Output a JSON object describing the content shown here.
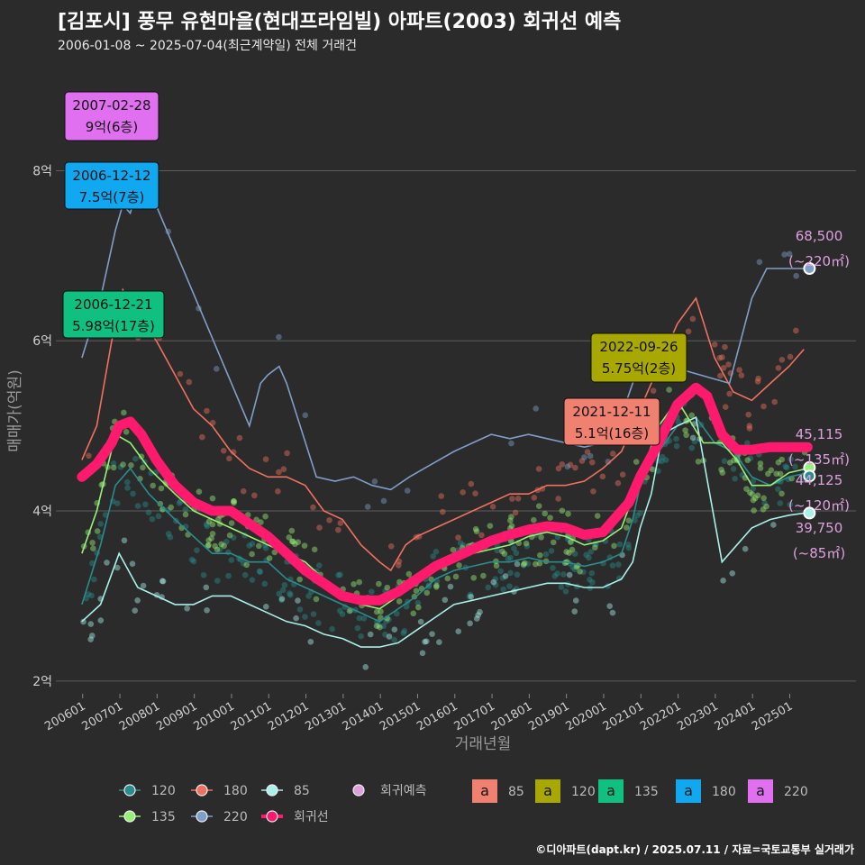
{
  "title": "[김포시] 풍무 유현마을(현대프라임빌) 아파트(2003) 회귀선 예측",
  "subtitle": "2006-01-08 ~ 2025-07-04(최근계약일) 전체 거래건",
  "credit": "©디아파트(dapt.kr) / 2025.07.11 / 자료=국토교통부 실거래가",
  "colors": {
    "s120": "#2a8c8c",
    "s180": "#f07060",
    "s85": "#a8f0e8",
    "s135": "#98f078",
    "s220": "#7f9fc8",
    "trend": "#ff1a6e",
    "forecast": "#dda0dd",
    "box85": "#f08070",
    "box120": "#a8a800",
    "box135": "#10c080",
    "box180": "#10a8f0",
    "box220": "#e070f0"
  },
  "chart_data": {
    "type": "line",
    "xlabel": "거래년월",
    "ylabel": "매매가(억원)",
    "x_ticks": [
      "200601",
      "200701",
      "200801",
      "200901",
      "201001",
      "201101",
      "201201",
      "201301",
      "201401",
      "201501",
      "201601",
      "201701",
      "201801",
      "201901",
      "202001",
      "202101",
      "202201",
      "202301",
      "202401",
      "202501"
    ],
    "y_ticks": [
      {
        "v": 2,
        "label": "2억"
      },
      {
        "v": 4,
        "label": "4억"
      },
      {
        "v": 6,
        "label": "6억"
      },
      {
        "v": 8,
        "label": "8억"
      }
    ],
    "ylim": [
      2,
      9.2
    ],
    "series": [
      {
        "name": "120",
        "key": "s120",
        "points": [
          [
            2006.0,
            2.9
          ],
          [
            2006.5,
            3.6
          ],
          [
            2006.9,
            4.3
          ],
          [
            2007.3,
            4.5
          ],
          [
            2007.8,
            4.2
          ],
          [
            2008.5,
            3.9
          ],
          [
            2009.0,
            3.7
          ],
          [
            2009.5,
            3.5
          ],
          [
            2010.0,
            3.5
          ],
          [
            2010.5,
            3.4
          ],
          [
            2011.0,
            3.4
          ],
          [
            2011.5,
            3.2
          ],
          [
            2012.0,
            3.1
          ],
          [
            2012.5,
            3.0
          ],
          [
            2013.0,
            2.9
          ],
          [
            2013.5,
            2.8
          ],
          [
            2014.0,
            2.7
          ],
          [
            2014.5,
            2.85
          ],
          [
            2015.0,
            3.0
          ],
          [
            2015.5,
            3.2
          ],
          [
            2016.0,
            3.3
          ],
          [
            2016.5,
            3.35
          ],
          [
            2017.0,
            3.4
          ],
          [
            2017.5,
            3.4
          ],
          [
            2018.0,
            3.45
          ],
          [
            2018.5,
            3.4
          ],
          [
            2019.0,
            3.4
          ],
          [
            2019.5,
            3.35
          ],
          [
            2020.0,
            3.4
          ],
          [
            2020.5,
            3.5
          ],
          [
            2020.8,
            3.9
          ],
          [
            2021.0,
            4.3
          ],
          [
            2021.5,
            4.7
          ],
          [
            2022.0,
            5.0
          ],
          [
            2022.5,
            5.1
          ],
          [
            2023.0,
            4.8
          ],
          [
            2023.5,
            4.7
          ],
          [
            2024.0,
            4.4
          ],
          [
            2024.5,
            4.3
          ],
          [
            2025.0,
            4.4
          ],
          [
            2025.5,
            4.45
          ]
        ]
      },
      {
        "name": "180",
        "key": "s180",
        "points": [
          [
            2006.0,
            4.6
          ],
          [
            2006.4,
            5.0
          ],
          [
            2006.8,
            6.0
          ],
          [
            2007.1,
            6.6
          ],
          [
            2007.5,
            6.3
          ],
          [
            2008.0,
            6.0
          ],
          [
            2008.5,
            5.6
          ],
          [
            2009.0,
            5.2
          ],
          [
            2009.5,
            5.0
          ],
          [
            2010.0,
            4.7
          ],
          [
            2010.5,
            4.5
          ],
          [
            2011.0,
            4.4
          ],
          [
            2011.5,
            4.4
          ],
          [
            2012.0,
            4.3
          ],
          [
            2012.5,
            4.0
          ],
          [
            2013.0,
            3.9
          ],
          [
            2013.5,
            3.6
          ],
          [
            2014.0,
            3.4
          ],
          [
            2014.3,
            3.3
          ],
          [
            2014.7,
            3.6
          ],
          [
            2015.0,
            3.7
          ],
          [
            2015.5,
            3.8
          ],
          [
            2016.0,
            3.9
          ],
          [
            2016.5,
            4.0
          ],
          [
            2017.0,
            4.1
          ],
          [
            2017.5,
            4.2
          ],
          [
            2018.0,
            4.2
          ],
          [
            2018.5,
            4.3
          ],
          [
            2019.0,
            4.3
          ],
          [
            2019.5,
            4.35
          ],
          [
            2020.0,
            4.5
          ],
          [
            2020.5,
            4.7
          ],
          [
            2021.0,
            5.2
          ],
          [
            2021.5,
            5.7
          ],
          [
            2022.0,
            6.2
          ],
          [
            2022.5,
            6.5
          ],
          [
            2023.0,
            5.8
          ],
          [
            2023.5,
            5.4
          ],
          [
            2024.0,
            5.3
          ],
          [
            2024.5,
            5.5
          ],
          [
            2025.0,
            5.7
          ],
          [
            2025.4,
            5.9
          ]
        ]
      },
      {
        "name": "85",
        "key": "s85",
        "points": [
          [
            2006.0,
            2.7
          ],
          [
            2006.5,
            2.9
          ],
          [
            2007.0,
            3.5
          ],
          [
            2007.5,
            3.1
          ],
          [
            2008.0,
            3.0
          ],
          [
            2008.5,
            2.9
          ],
          [
            2009.0,
            2.9
          ],
          [
            2009.5,
            3.0
          ],
          [
            2010.0,
            3.0
          ],
          [
            2010.5,
            2.9
          ],
          [
            2011.0,
            2.8
          ],
          [
            2011.5,
            2.7
          ],
          [
            2012.0,
            2.65
          ],
          [
            2012.5,
            2.55
          ],
          [
            2013.0,
            2.5
          ],
          [
            2013.5,
            2.4
          ],
          [
            2014.0,
            2.4
          ],
          [
            2014.5,
            2.45
          ],
          [
            2015.0,
            2.6
          ],
          [
            2015.5,
            2.75
          ],
          [
            2016.0,
            2.9
          ],
          [
            2016.5,
            2.95
          ],
          [
            2017.0,
            3.0
          ],
          [
            2017.5,
            3.05
          ],
          [
            2018.0,
            3.1
          ],
          [
            2018.5,
            3.15
          ],
          [
            2019.0,
            3.15
          ],
          [
            2019.5,
            3.1
          ],
          [
            2020.0,
            3.1
          ],
          [
            2020.5,
            3.2
          ],
          [
            2020.8,
            3.4
          ],
          [
            2021.0,
            3.8
          ],
          [
            2021.3,
            4.2
          ],
          [
            2021.6,
            4.9
          ],
          [
            2022.0,
            5.0
          ],
          [
            2022.5,
            5.1
          ],
          [
            2023.2,
            3.4
          ],
          [
            2023.6,
            3.6
          ],
          [
            2024.0,
            3.8
          ],
          [
            2024.5,
            3.9
          ],
          [
            2025.0,
            3.95
          ],
          [
            2025.5,
            3.98
          ]
        ]
      },
      {
        "name": "135",
        "key": "s135",
        "points": [
          [
            2006.0,
            3.5
          ],
          [
            2006.4,
            4.0
          ],
          [
            2006.9,
            4.9
          ],
          [
            2007.3,
            4.8
          ],
          [
            2007.8,
            4.5
          ],
          [
            2008.5,
            4.2
          ],
          [
            2009.0,
            4.0
          ],
          [
            2009.5,
            3.9
          ],
          [
            2010.0,
            3.8
          ],
          [
            2010.5,
            3.7
          ],
          [
            2011.0,
            3.6
          ],
          [
            2011.5,
            3.5
          ],
          [
            2012.0,
            3.4
          ],
          [
            2012.5,
            3.2
          ],
          [
            2013.0,
            3.0
          ],
          [
            2013.5,
            2.9
          ],
          [
            2014.0,
            2.85
          ],
          [
            2014.5,
            3.0
          ],
          [
            2015.0,
            3.15
          ],
          [
            2015.5,
            3.3
          ],
          [
            2016.0,
            3.4
          ],
          [
            2016.5,
            3.5
          ],
          [
            2017.0,
            3.55
          ],
          [
            2017.5,
            3.6
          ],
          [
            2018.0,
            3.7
          ],
          [
            2018.5,
            3.75
          ],
          [
            2019.0,
            3.7
          ],
          [
            2019.5,
            3.6
          ],
          [
            2020.0,
            3.65
          ],
          [
            2020.5,
            3.8
          ],
          [
            2021.0,
            4.4
          ],
          [
            2021.5,
            5.0
          ],
          [
            2022.0,
            5.3
          ],
          [
            2022.7,
            4.8
          ],
          [
            2023.2,
            4.8
          ],
          [
            2023.6,
            4.6
          ],
          [
            2024.0,
            4.3
          ],
          [
            2024.5,
            4.3
          ],
          [
            2025.0,
            4.45
          ],
          [
            2025.5,
            4.5
          ]
        ]
      },
      {
        "name": "220",
        "key": "s220",
        "points": [
          [
            2006.0,
            5.8
          ],
          [
            2006.5,
            6.5
          ],
          [
            2006.9,
            7.3
          ],
          [
            2007.1,
            7.6
          ],
          [
            2007.3,
            7.5
          ],
          [
            2007.6,
            8.0
          ],
          [
            2010.5,
            5.0
          ],
          [
            2010.8,
            5.5
          ],
          [
            2011.0,
            5.6
          ],
          [
            2011.3,
            5.7
          ],
          [
            2011.5,
            5.5
          ],
          [
            2012.3,
            4.4
          ],
          [
            2012.8,
            4.35
          ],
          [
            2013.3,
            4.4
          ],
          [
            2013.8,
            4.3
          ],
          [
            2014.3,
            4.25
          ],
          [
            2014.8,
            4.4
          ],
          [
            2015.2,
            4.5
          ],
          [
            2015.6,
            4.6
          ],
          [
            2016.0,
            4.7
          ],
          [
            2016.5,
            4.8
          ],
          [
            2017.0,
            4.9
          ],
          [
            2017.5,
            4.85
          ],
          [
            2018.0,
            4.9
          ],
          [
            2018.5,
            4.85
          ],
          [
            2019.0,
            4.8
          ],
          [
            2019.5,
            4.75
          ],
          [
            2020.0,
            4.8
          ],
          [
            2020.4,
            5.0
          ],
          [
            2020.8,
            5.5
          ],
          [
            2021.0,
            5.8
          ],
          [
            2023.4,
            5.5
          ],
          [
            2023.7,
            6.0
          ],
          [
            2024.0,
            6.5
          ],
          [
            2024.4,
            6.85
          ],
          [
            2025.0,
            6.85
          ],
          [
            2025.5,
            6.85
          ]
        ]
      },
      {
        "name": "회귀선",
        "key": "trend",
        "points": [
          [
            2006.0,
            4.4
          ],
          [
            2006.4,
            4.55
          ],
          [
            2006.8,
            4.8
          ],
          [
            2007.0,
            5.0
          ],
          [
            2007.3,
            5.05
          ],
          [
            2007.6,
            4.9
          ],
          [
            2008.0,
            4.6
          ],
          [
            2008.5,
            4.3
          ],
          [
            2009.0,
            4.1
          ],
          [
            2009.5,
            4.0
          ],
          [
            2010.0,
            4.0
          ],
          [
            2010.5,
            3.85
          ],
          [
            2011.0,
            3.7
          ],
          [
            2011.5,
            3.5
          ],
          [
            2012.0,
            3.3
          ],
          [
            2012.5,
            3.15
          ],
          [
            2013.0,
            3.0
          ],
          [
            2013.5,
            2.95
          ],
          [
            2014.0,
            2.95
          ],
          [
            2014.5,
            3.05
          ],
          [
            2015.0,
            3.2
          ],
          [
            2015.5,
            3.35
          ],
          [
            2016.0,
            3.45
          ],
          [
            2016.5,
            3.55
          ],
          [
            2017.0,
            3.65
          ],
          [
            2017.5,
            3.72
          ],
          [
            2018.0,
            3.78
          ],
          [
            2018.5,
            3.82
          ],
          [
            2019.0,
            3.8
          ],
          [
            2019.5,
            3.72
          ],
          [
            2020.0,
            3.75
          ],
          [
            2020.3,
            3.9
          ],
          [
            2020.7,
            4.1
          ],
          [
            2021.0,
            4.4
          ],
          [
            2021.5,
            4.8
          ],
          [
            2022.0,
            5.25
          ],
          [
            2022.5,
            5.45
          ],
          [
            2022.8,
            5.35
          ],
          [
            2023.2,
            4.9
          ],
          [
            2023.6,
            4.72
          ],
          [
            2024.0,
            4.72
          ],
          [
            2024.5,
            4.75
          ],
          [
            2025.0,
            4.75
          ],
          [
            2025.5,
            4.75
          ]
        ]
      }
    ],
    "forecast": [
      {
        "value": 6.85,
        "label": "68,500",
        "area": "(~220㎡)",
        "key": "s220"
      },
      {
        "value": 4.51,
        "label": "45,115",
        "area": "(~135㎡)",
        "key": "s135"
      },
      {
        "value": 4.41,
        "label": "44,125",
        "area": "(~120㎡)",
        "key": "s120"
      },
      {
        "value": 3.975,
        "label": "39,750",
        "area": "(~85㎡)",
        "key": "s85"
      }
    ],
    "callouts": [
      {
        "date": "2007-02-28",
        "price": "9억(6층)",
        "box": "box220",
        "text_color": "#111111"
      },
      {
        "date": "2006-12-12",
        "price": "7.5억(7층)",
        "box": "box180",
        "text_color": "#111111"
      },
      {
        "date": "2006-12-21",
        "price": "5.98억(17층)",
        "box": "box135",
        "text_color": "#111111"
      },
      {
        "date": "2022-09-26",
        "price": "5.75억(2층)",
        "box": "box120",
        "text_color": "#111111"
      },
      {
        "date": "2021-12-11",
        "price": "5.1억(16층)",
        "box": "box85",
        "text_color": "#111111"
      }
    ],
    "legend_lines": [
      {
        "label": "120",
        "key": "s120"
      },
      {
        "label": "180",
        "key": "s180"
      },
      {
        "label": "85",
        "key": "s85"
      },
      {
        "label": "회귀예측",
        "key": "forecast"
      },
      {
        "label": "135",
        "key": "s135"
      },
      {
        "label": "220",
        "key": "s220"
      },
      {
        "label": "회귀선",
        "key": "trend"
      }
    ],
    "legend_boxes": [
      {
        "glyph": "a",
        "label": "85",
        "key": "box85"
      },
      {
        "glyph": "a",
        "label": "120",
        "key": "box120"
      },
      {
        "glyph": "a",
        "label": "135",
        "key": "box135"
      },
      {
        "glyph": "a",
        "label": "180",
        "key": "box180"
      },
      {
        "glyph": "a",
        "label": "220",
        "key": "box220"
      }
    ]
  }
}
